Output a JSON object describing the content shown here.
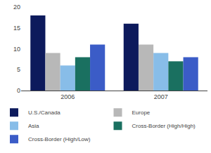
{
  "chart_data": {
    "type": "bar",
    "categories": [
      "2006",
      "2007"
    ],
    "series": [
      {
        "name": "U.S./Canada",
        "values": [
          18,
          16
        ],
        "color": "#0d1a5c"
      },
      {
        "name": "Europe",
        "values": [
          9,
          11
        ],
        "color": "#b8b8b8"
      },
      {
        "name": "Asia",
        "values": [
          6,
          9
        ],
        "color": "#88bde8"
      },
      {
        "name": "Cross-Border (High/High)",
        "values": [
          8,
          7
        ],
        "color": "#1a7060"
      },
      {
        "name": "Cross-Border (High/Low)",
        "values": [
          11,
          8
        ],
        "color": "#3b5cc7"
      }
    ],
    "ylim": [
      0,
      20
    ],
    "yticks": [
      0,
      5,
      10,
      15,
      20
    ],
    "grid": false,
    "legend": "bottom"
  }
}
